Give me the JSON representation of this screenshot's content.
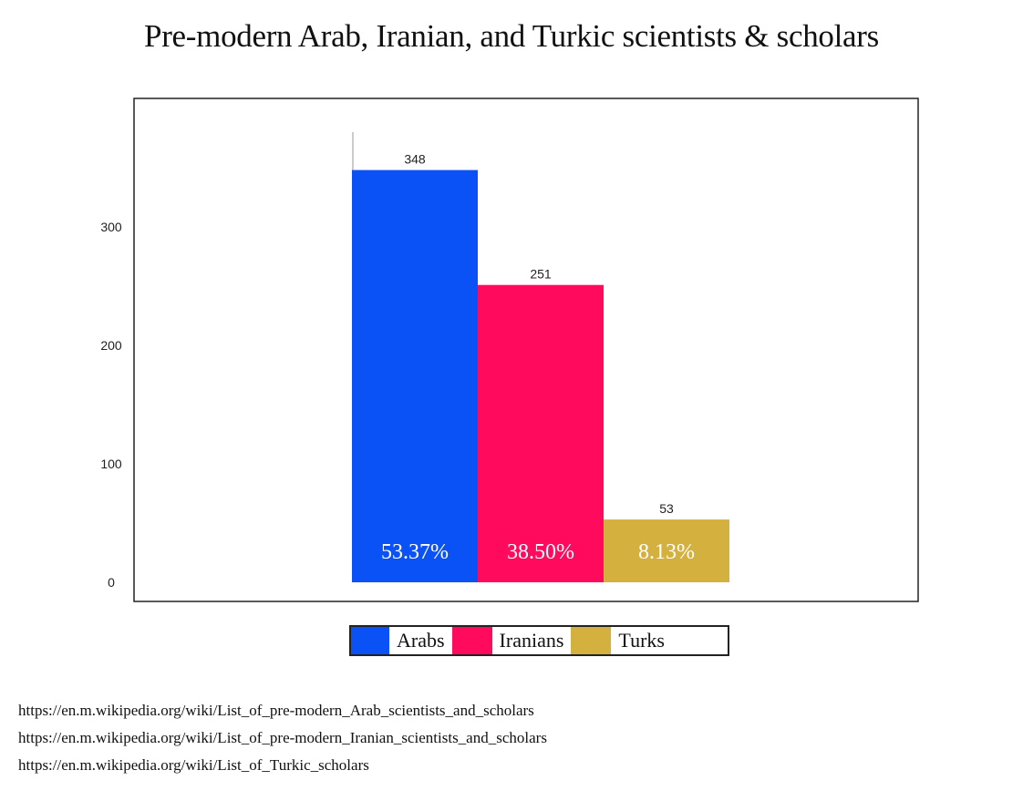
{
  "title": "Pre-modern Arab, Iranian, and Turkic scientists & scholars",
  "chart_data": {
    "type": "bar",
    "title": "Pre-modern Arab, Iranian, and Turkic scientists & scholars",
    "xlabel": "",
    "ylabel": "",
    "categories": [
      "Arabs",
      "Iranians",
      "Turks"
    ],
    "values": [
      348,
      251,
      53
    ],
    "value_labels": [
      "348",
      "251",
      "53"
    ],
    "percent_labels": [
      "53.37%",
      "38.50%",
      "8.13%"
    ],
    "colors": [
      "#0a52f5",
      "#ff0a5c",
      "#d4b13e"
    ],
    "ylim": [
      0,
      380
    ],
    "yticks": [
      0,
      100,
      200,
      300
    ],
    "ytick_labels": [
      "0",
      "100",
      "200",
      "300"
    ],
    "grid": false,
    "legend_position": "bottom"
  },
  "legend": {
    "items": [
      {
        "label": "Arabs",
        "color": "#0a52f5"
      },
      {
        "label": "Iranians",
        "color": "#ff0a5c"
      },
      {
        "label": "Turks",
        "color": "#d4b13e"
      }
    ]
  },
  "sources": [
    "https://en.m.wikipedia.org/wiki/List_of_pre-modern_Arab_scientists_and_scholars",
    "https://en.m.wikipedia.org/wiki/List_of_pre-modern_Iranian_scientists_and_scholars",
    "https://en.m.wikipedia.org/wiki/List_of_Turkic_scholars"
  ]
}
